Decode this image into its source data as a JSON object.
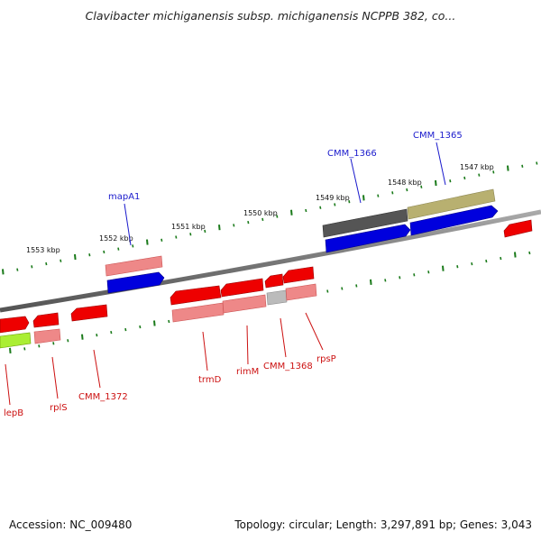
{
  "title": "Clavibacter michiganensis subsp. michiganensis NCPPB 382, co...",
  "footer": {
    "accession": "Accession: NC_009480",
    "topology": "Topology: circular; Length: 3,297,891 bp; Genes: 3,043"
  },
  "scale_labels": [
    "1553 kbp",
    "1552 kbp",
    "1551 kbp",
    "1550 kbp",
    "1549 kbp",
    "1548 kbp",
    "1547 kbp"
  ],
  "upper_labels": [
    "mapA1",
    "CMM_1366",
    "CMM_1365"
  ],
  "lower_labels": [
    "lepB",
    "rplS",
    "CMM_1372",
    "trmD",
    "rimM",
    "CMM_1368",
    "rpsP"
  ],
  "colors": {
    "backbone": "#777777",
    "tick": "#1a7a1a",
    "upper_label": "#1a1acc",
    "lower_label": "#cc1111",
    "gene_red": "#ee0000",
    "gene_pink": "#ee8888",
    "gene_blue": "#0000dd",
    "gene_dark_gray": "#555555",
    "gene_olive": "#b8b070",
    "gene_light_gray": "#bbbbbb",
    "gene_lime": "#aaee33"
  }
}
